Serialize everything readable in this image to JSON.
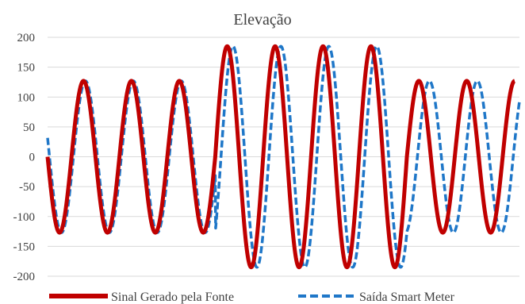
{
  "colors": {
    "series1": "#c00000",
    "series2": "#1f77c8",
    "grid": "#d9d9d9",
    "text": "#404040"
  },
  "chart_data": {
    "type": "line",
    "title": "Elevação",
    "xlabel": "",
    "ylabel": "",
    "ylim": [
      -200,
      200
    ],
    "yticks": [
      200,
      150,
      100,
      50,
      0,
      -50,
      -100,
      -150,
      -200
    ],
    "ytick_labels": [
      "200",
      "150",
      "100",
      "50",
      "0",
      "-50",
      "-100",
      "-150",
      "-200"
    ],
    "xlim": [
      0,
      9.85
    ],
    "grid": true,
    "legend": "bottom",
    "series": [
      {
        "name": "Sinal Gerado pela Fonte",
        "style": "solid",
        "segments": [
          {
            "from": 0.0,
            "to": 3.5,
            "amplitude": 127,
            "phase_shift": 0.0
          },
          {
            "from": 3.5,
            "to": 7.5,
            "amplitude": 185,
            "phase_shift": 0.0
          },
          {
            "from": 7.5,
            "to": 9.75,
            "amplitude": 127,
            "phase_shift": 0.0
          }
        ]
      },
      {
        "name": "Saída Smart Meter",
        "style": "dashed",
        "segments": [
          {
            "from": 0.0,
            "to": 3.5,
            "amplitude": 127,
            "phase_shift": 0.04
          },
          {
            "from": 3.5,
            "to": 7.5,
            "amplitude": 185,
            "phase_shift": 0.12
          },
          {
            "from": 7.5,
            "to": 9.85,
            "amplitude": 127,
            "phase_shift": 0.22
          }
        ]
      }
    ]
  }
}
